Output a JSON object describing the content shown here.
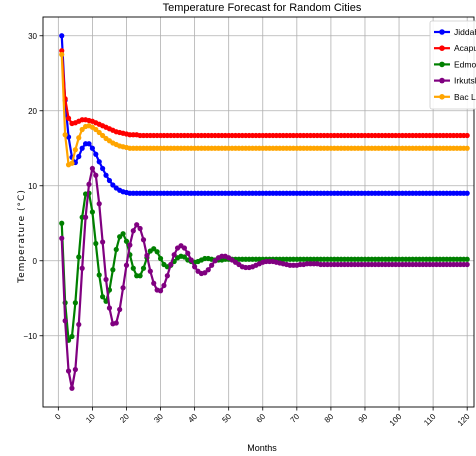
{
  "chart_data": {
    "type": "line",
    "title": "Temperature Forecast for Random Cities",
    "xlabel": "Months",
    "ylabel": "Temperature (°C)",
    "xlim": [
      -4.5,
      122
    ],
    "ylim": [
      -19.5,
      32.5
    ],
    "xticks": [
      0,
      10,
      20,
      30,
      40,
      50,
      60,
      70,
      80,
      90,
      100,
      110,
      120
    ],
    "yticks": [
      -10,
      0,
      10,
      20,
      30
    ],
    "xtick_labels": [
      "0",
      "10",
      "20",
      "30",
      "40",
      "50",
      "60",
      "70",
      "80",
      "90",
      "100",
      "110",
      "120"
    ],
    "ytick_labels": [
      "−10",
      "0",
      "10",
      "20",
      "30"
    ],
    "grid": true,
    "legend_position": "top-right",
    "months": [
      1,
      2,
      3,
      4,
      5,
      6,
      7,
      8,
      9,
      10,
      11,
      12,
      13,
      14,
      15,
      16,
      17,
      18,
      19,
      20,
      21,
      22,
      23,
      24,
      25,
      26,
      27,
      28,
      29,
      30,
      31,
      32,
      33,
      34,
      35,
      36,
      37,
      38,
      39,
      40,
      41,
      42,
      43,
      44,
      45,
      46,
      47,
      48,
      49,
      50,
      51,
      52,
      53,
      54,
      55,
      56,
      57,
      58,
      59,
      60,
      61,
      62,
      63,
      64,
      65,
      66,
      67,
      68,
      69,
      70,
      71,
      72,
      73,
      74,
      75,
      76,
      77,
      78,
      79,
      80,
      81,
      82,
      83,
      84,
      85,
      86,
      87,
      88,
      89,
      90,
      91,
      92,
      93,
      94,
      95,
      96,
      97,
      98,
      99,
      100,
      101,
      102,
      103,
      104,
      105,
      106,
      107,
      108,
      109,
      110,
      111,
      112,
      113,
      114,
      115,
      116,
      117,
      118,
      119,
      120
    ],
    "series": [
      {
        "name": "Jiddah",
        "color": "#0000ff",
        "values": [
          30.0,
          21.4,
          16.5,
          13.8,
          13.1,
          13.9,
          15.0,
          15.6,
          15.6,
          15.0,
          14.2,
          13.2,
          12.3,
          11.4,
          10.7,
          10.1,
          9.7,
          9.4,
          9.2,
          9.1,
          9.0,
          9.0,
          9.0,
          9.0,
          9.0,
          9.0,
          9.0,
          9.0,
          9.0,
          9.0,
          9.0,
          9.0,
          9.0,
          9.0,
          9.0,
          9.0,
          9.0,
          9.0,
          9.0,
          9.0,
          9.0,
          9.0,
          9.0,
          9.0,
          9.0,
          9.0,
          9.0,
          9.0,
          9.0,
          9.0,
          9.0,
          9.0,
          9.0,
          9.0,
          9.0,
          9.0,
          9.0,
          9.0,
          9.0,
          9.0,
          9.0,
          9.0,
          9.0,
          9.0,
          9.0,
          9.0,
          9.0,
          9.0,
          9.0,
          9.0,
          9.0,
          9.0,
          9.0,
          9.0,
          9.0,
          9.0,
          9.0,
          9.0,
          9.0,
          9.0,
          9.0,
          9.0,
          9.0,
          9.0,
          9.0,
          9.0,
          9.0,
          9.0,
          9.0,
          9.0,
          9.0,
          9.0,
          9.0,
          9.0,
          9.0,
          9.0,
          9.0,
          9.0,
          9.0,
          9.0,
          9.0,
          9.0,
          9.0,
          9.0,
          9.0,
          9.0,
          9.0,
          9.0,
          9.0,
          9.0,
          9.0,
          9.0,
          9.0,
          9.0,
          9.0,
          9.0,
          9.0,
          9.0,
          9.0,
          9.0
        ]
      },
      {
        "name": "Acapulco",
        "color": "#ff0000",
        "values": [
          28.0,
          21.6,
          19.0,
          18.3,
          18.4,
          18.6,
          18.8,
          18.8,
          18.7,
          18.6,
          18.4,
          18.2,
          18.0,
          17.8,
          17.6,
          17.4,
          17.2,
          17.1,
          17.0,
          16.9,
          16.8,
          16.8,
          16.8,
          16.7,
          16.7,
          16.7,
          16.7,
          16.7,
          16.7,
          16.7,
          16.7,
          16.7,
          16.7,
          16.7,
          16.7,
          16.7,
          16.7,
          16.7,
          16.7,
          16.7,
          16.7,
          16.7,
          16.7,
          16.7,
          16.7,
          16.7,
          16.7,
          16.7,
          16.7,
          16.7,
          16.7,
          16.7,
          16.7,
          16.7,
          16.7,
          16.7,
          16.7,
          16.7,
          16.7,
          16.7,
          16.7,
          16.7,
          16.7,
          16.7,
          16.7,
          16.7,
          16.7,
          16.7,
          16.7,
          16.7,
          16.7,
          16.7,
          16.7,
          16.7,
          16.7,
          16.7,
          16.7,
          16.7,
          16.7,
          16.7,
          16.7,
          16.7,
          16.7,
          16.7,
          16.7,
          16.7,
          16.7,
          16.7,
          16.7,
          16.7,
          16.7,
          16.7,
          16.7,
          16.7,
          16.7,
          16.7,
          16.7,
          16.7,
          16.7,
          16.7,
          16.7,
          16.7,
          16.7,
          16.7,
          16.7,
          16.7,
          16.7,
          16.7,
          16.7,
          16.7,
          16.7,
          16.7,
          16.7,
          16.7,
          16.7,
          16.7,
          16.7,
          16.7,
          16.7,
          16.7
        ]
      },
      {
        "name": "Edmonton",
        "color": "#008000",
        "values": [
          5.0,
          -5.6,
          -10.6,
          -10.1,
          -5.6,
          0.5,
          5.8,
          8.9,
          9.0,
          6.5,
          2.3,
          -1.9,
          -4.8,
          -5.4,
          -3.9,
          -1.2,
          1.5,
          3.2,
          3.6,
          2.6,
          0.8,
          -1.0,
          -2.0,
          -2.0,
          -1.0,
          0.4,
          1.3,
          1.6,
          1.2,
          0.3,
          -0.5,
          -0.8,
          -0.6,
          -0.1,
          0.4,
          0.6,
          0.5,
          0.1,
          -0.1,
          -0.2,
          -0.1,
          0.1,
          0.3,
          0.3,
          0.2,
          0.1,
          0.1,
          0.1,
          0.2,
          0.2,
          0.2,
          0.2,
          0.2,
          0.2,
          0.2,
          0.2,
          0.2,
          0.2,
          0.2,
          0.2,
          0.2,
          0.2,
          0.2,
          0.2,
          0.2,
          0.2,
          0.2,
          0.2,
          0.2,
          0.2,
          0.2,
          0.2,
          0.2,
          0.2,
          0.2,
          0.2,
          0.2,
          0.2,
          0.2,
          0.2,
          0.2,
          0.2,
          0.2,
          0.2,
          0.2,
          0.2,
          0.2,
          0.2,
          0.2,
          0.2,
          0.2,
          0.2,
          0.2,
          0.2,
          0.2,
          0.2,
          0.2,
          0.2,
          0.2,
          0.2,
          0.2,
          0.2,
          0.2,
          0.2,
          0.2,
          0.2,
          0.2,
          0.2,
          0.2,
          0.2,
          0.2,
          0.2,
          0.2,
          0.2,
          0.2,
          0.2,
          0.2,
          0.2,
          0.2,
          0.2
        ]
      },
      {
        "name": "Irkutsk",
        "color": "#800080",
        "values": [
          3.0,
          -8.0,
          -14.7,
          -17.0,
          -14.5,
          -8.5,
          -1.0,
          5.8,
          10.2,
          12.3,
          11.4,
          7.6,
          2.5,
          -2.5,
          -6.3,
          -8.4,
          -8.3,
          -6.5,
          -3.6,
          -0.6,
          2.1,
          4.0,
          4.8,
          4.3,
          2.8,
          0.7,
          -1.4,
          -3.0,
          -3.9,
          -4.0,
          -3.3,
          -2.0,
          -0.5,
          0.8,
          1.7,
          2.0,
          1.7,
          1.0,
          0.1,
          -0.8,
          -1.4,
          -1.7,
          -1.6,
          -1.2,
          -0.6,
          0.0,
          0.4,
          0.6,
          0.6,
          0.4,
          0.1,
          -0.2,
          -0.5,
          -0.8,
          -0.9,
          -0.9,
          -0.8,
          -0.6,
          -0.4,
          -0.2,
          -0.1,
          -0.1,
          -0.1,
          -0.2,
          -0.3,
          -0.4,
          -0.5,
          -0.6,
          -0.6,
          -0.6,
          -0.5,
          -0.5,
          -0.4,
          -0.4,
          -0.4,
          -0.4,
          -0.5,
          -0.5,
          -0.5,
          -0.5,
          -0.5,
          -0.5,
          -0.5,
          -0.5,
          -0.5,
          -0.5,
          -0.5,
          -0.5,
          -0.5,
          -0.5,
          -0.5,
          -0.5,
          -0.5,
          -0.5,
          -0.5,
          -0.5,
          -0.5,
          -0.5,
          -0.5,
          -0.5,
          -0.5,
          -0.5,
          -0.5,
          -0.5,
          -0.5,
          -0.5,
          -0.5,
          -0.5,
          -0.5,
          -0.5,
          -0.5,
          -0.5,
          -0.5,
          -0.5,
          -0.5,
          -0.5,
          -0.5,
          -0.5,
          -0.5,
          -0.5
        ]
      },
      {
        "name": "Bac Lieu",
        "color": "#ffa500",
        "values": [
          27.5,
          16.8,
          12.8,
          13.0,
          14.8,
          16.4,
          17.5,
          17.9,
          18.0,
          17.8,
          17.5,
          17.1,
          16.7,
          16.3,
          16.0,
          15.7,
          15.5,
          15.3,
          15.2,
          15.1,
          15.0,
          15.0,
          15.0,
          15.0,
          15.0,
          15.0,
          15.0,
          15.0,
          15.0,
          15.0,
          15.0,
          15.0,
          15.0,
          15.0,
          15.0,
          15.0,
          15.0,
          15.0,
          15.0,
          15.0,
          15.0,
          15.0,
          15.0,
          15.0,
          15.0,
          15.0,
          15.0,
          15.0,
          15.0,
          15.0,
          15.0,
          15.0,
          15.0,
          15.0,
          15.0,
          15.0,
          15.0,
          15.0,
          15.0,
          15.0,
          15.0,
          15.0,
          15.0,
          15.0,
          15.0,
          15.0,
          15.0,
          15.0,
          15.0,
          15.0,
          15.0,
          15.0,
          15.0,
          15.0,
          15.0,
          15.0,
          15.0,
          15.0,
          15.0,
          15.0,
          15.0,
          15.0,
          15.0,
          15.0,
          15.0,
          15.0,
          15.0,
          15.0,
          15.0,
          15.0,
          15.0,
          15.0,
          15.0,
          15.0,
          15.0,
          15.0,
          15.0,
          15.0,
          15.0,
          15.0,
          15.0,
          15.0,
          15.0,
          15.0,
          15.0,
          15.0,
          15.0,
          15.0,
          15.0,
          15.0,
          15.0,
          15.0,
          15.0,
          15.0,
          15.0,
          15.0,
          15.0,
          15.0,
          15.0,
          15.0
        ]
      }
    ]
  }
}
